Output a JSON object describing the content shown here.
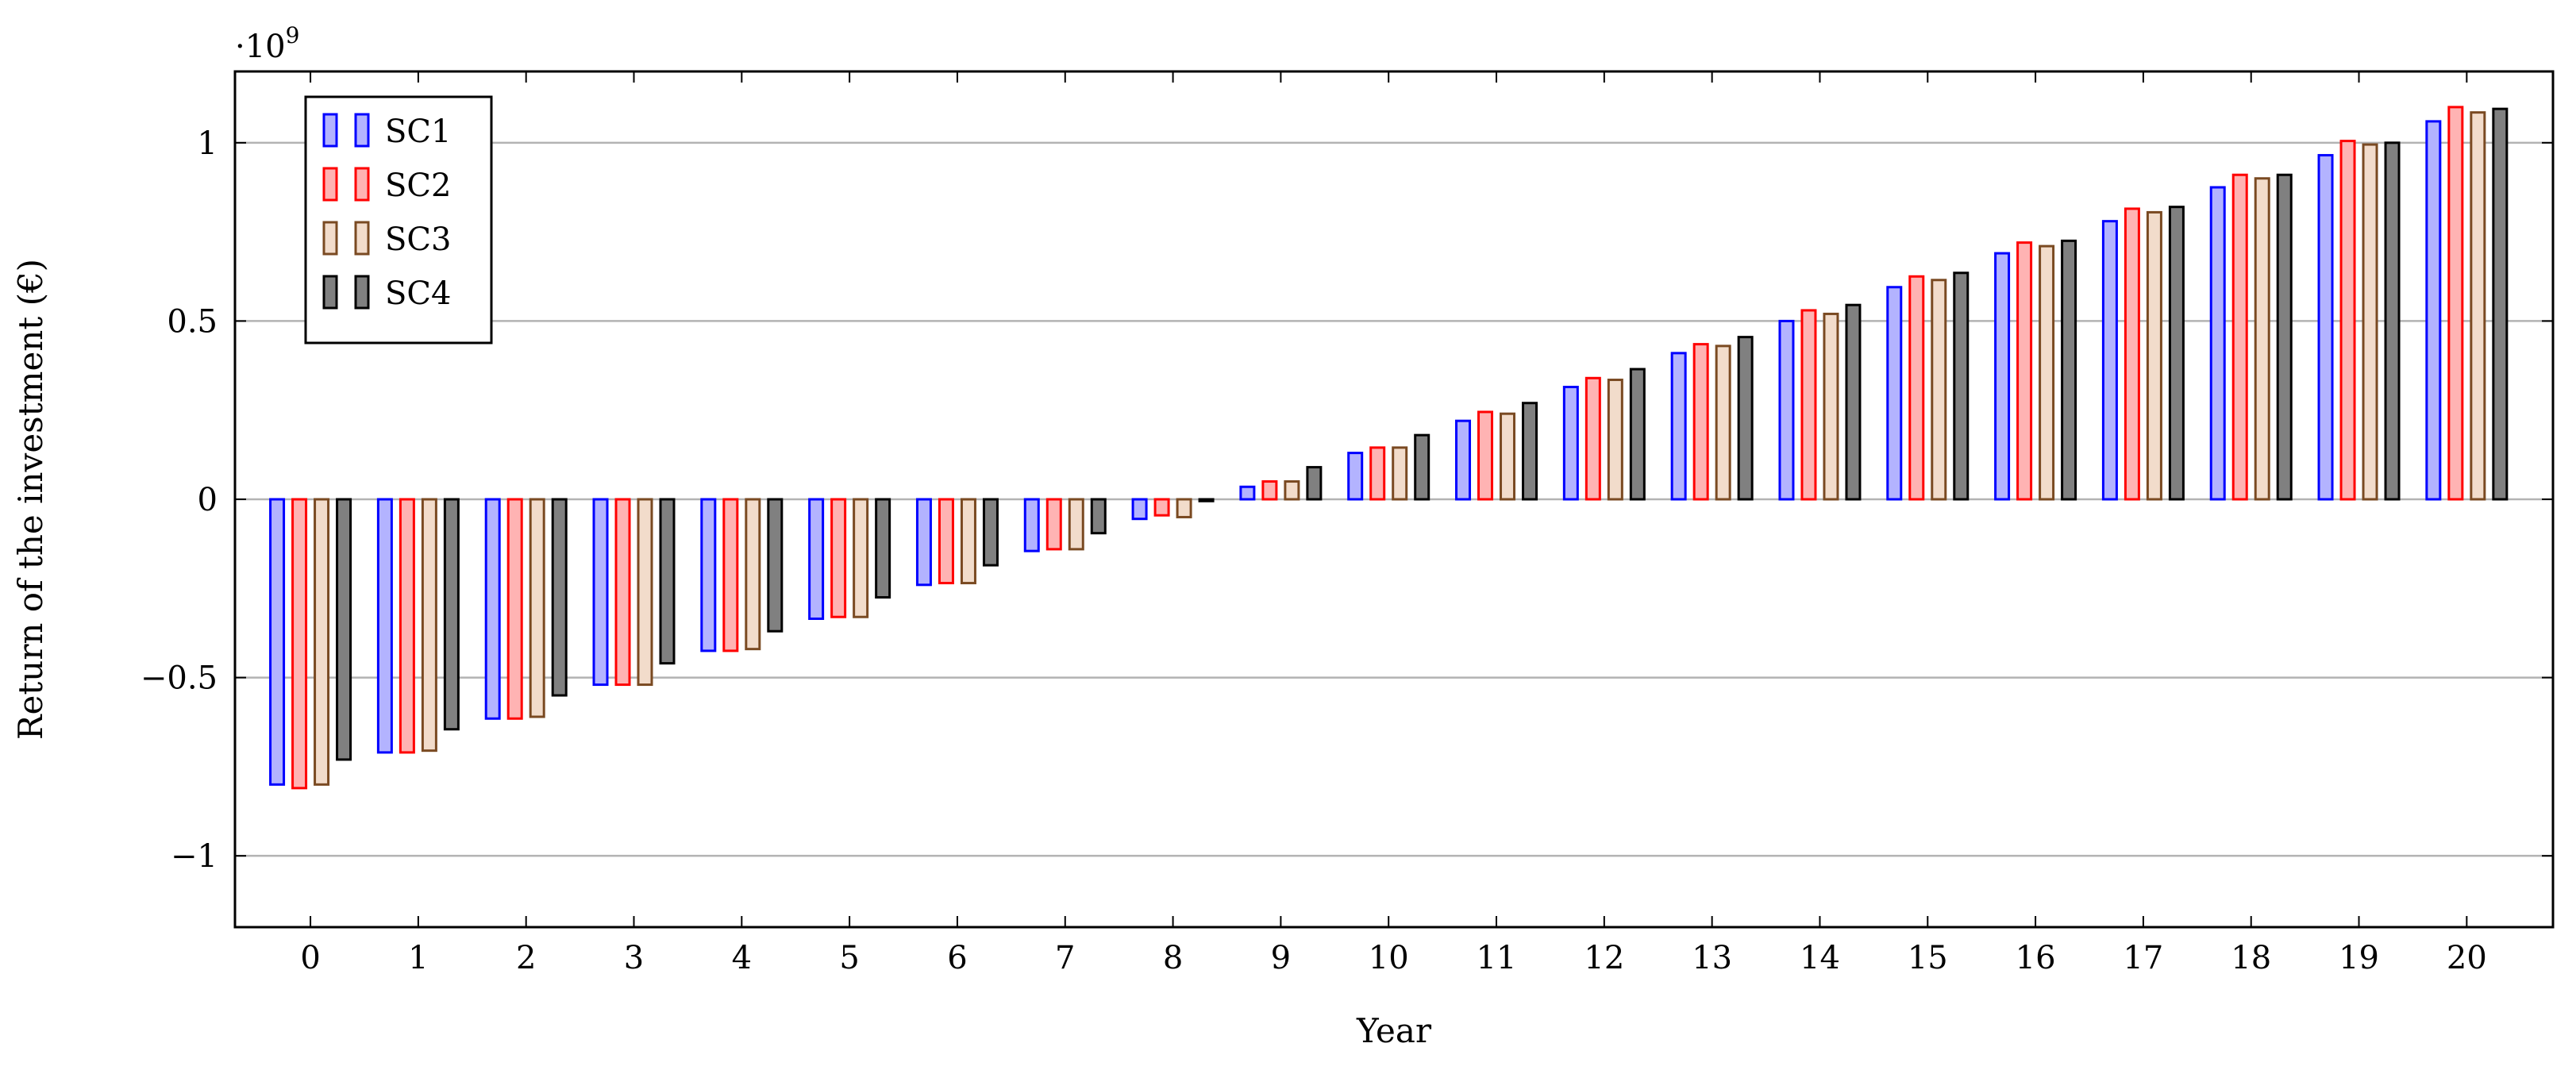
{
  "chart_data": {
    "type": "bar",
    "xlabel": "Year",
    "ylabel": "Return of the investment (€)",
    "y_multiplier": "·10",
    "y_multiplier_exponent": "9",
    "ylim": [
      -1.2,
      1.2
    ],
    "yticks": [
      -1,
      -0.5,
      0,
      0.5,
      1
    ],
    "ytick_labels": [
      "−1",
      "−0.5",
      "0",
      "0.5",
      "1"
    ],
    "grid": "horizontal",
    "legend_position": "top-left",
    "categories": [
      "0",
      "1",
      "2",
      "3",
      "4",
      "5",
      "6",
      "7",
      "8",
      "9",
      "10",
      "11",
      "12",
      "13",
      "14",
      "15",
      "16",
      "17",
      "18",
      "19",
      "20"
    ],
    "series": [
      {
        "name": "SC1",
        "fill": "#b3b3ff",
        "stroke": "#0000ff",
        "values": [
          -0.8,
          -0.71,
          -0.615,
          -0.52,
          -0.425,
          -0.335,
          -0.24,
          -0.145,
          -0.055,
          0.035,
          0.13,
          0.22,
          0.315,
          0.41,
          0.5,
          0.595,
          0.69,
          0.78,
          0.875,
          0.965,
          1.06
        ]
      },
      {
        "name": "SC2",
        "fill": "#ffb3b3",
        "stroke": "#ff0000",
        "values": [
          -0.81,
          -0.71,
          -0.615,
          -0.52,
          -0.425,
          -0.33,
          -0.235,
          -0.14,
          -0.045,
          0.05,
          0.145,
          0.245,
          0.34,
          0.435,
          0.53,
          0.625,
          0.72,
          0.815,
          0.91,
          1.005,
          1.1
        ]
      },
      {
        "name": "SC3",
        "fill": "#f2dccb",
        "stroke": "#7a4a22",
        "values": [
          -0.8,
          -0.705,
          -0.61,
          -0.52,
          -0.42,
          -0.33,
          -0.235,
          -0.14,
          -0.05,
          0.05,
          0.145,
          0.24,
          0.335,
          0.43,
          0.52,
          0.615,
          0.71,
          0.805,
          0.9,
          0.995,
          1.085
        ]
      },
      {
        "name": "SC4",
        "fill": "#808080",
        "stroke": "#000000",
        "values": [
          -0.73,
          -0.645,
          -0.55,
          -0.46,
          -0.37,
          -0.275,
          -0.185,
          -0.095,
          -0.005,
          0.09,
          0.18,
          0.27,
          0.365,
          0.455,
          0.545,
          0.635,
          0.725,
          0.82,
          0.91,
          1.0,
          1.095
        ]
      }
    ]
  }
}
